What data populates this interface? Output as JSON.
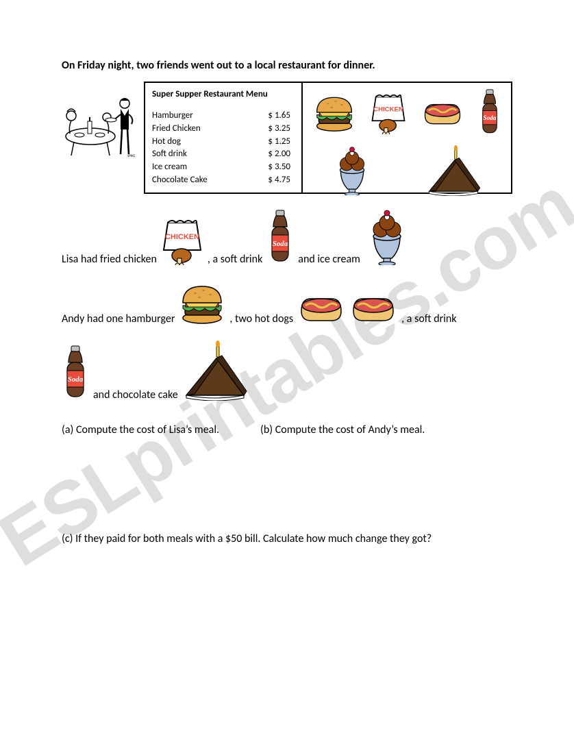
{
  "watermark": "ESLprintables.com",
  "intro": "On Friday night, two friends went out to a local restaurant for dinner.",
  "menu": {
    "title": "Super Supper Restaurant Menu",
    "items": [
      {
        "name": "Hamburger",
        "price": "$ 1.65"
      },
      {
        "name": "Fried Chicken",
        "price": "$ 3.25"
      },
      {
        "name": "Hot dog",
        "price": "$ 1.25"
      },
      {
        "name": "Soft drink",
        "price": "$ 2.00"
      },
      {
        "name": "Ice cream",
        "price": "$ 3.50"
      },
      {
        "name": "Chocolate Cake",
        "price": "$ 4.75"
      }
    ]
  },
  "lisa": {
    "p1": "Lisa had fried chicken",
    "p2": ", a soft drink",
    "p3": "and ice cream"
  },
  "andy": {
    "p1": "Andy had one hamburger",
    "p2": ", two hot dogs",
    "p3": ", a soft drink",
    "p4": "and chocolate cake"
  },
  "questions": {
    "a": "(a) Compute the cost of Lisa’s meal.",
    "b": "(b) Compute the cost of Andy’s meal.",
    "c": "(c) If they paid for both meals with a $50 bill. Calculate how much change they got?"
  },
  "colors": {
    "bun": "#e8a94a",
    "bunShade": "#c8842a",
    "lettuce": "#4caf50",
    "tomato": "#e74c3c",
    "patty": "#5d3a1a",
    "cheese": "#f7d358",
    "hotdogBun": "#f0c674",
    "sausage": "#d9534f",
    "mustard": "#e8c547",
    "bagOutline": "#000000",
    "bagFill": "#ffffff",
    "chickenText": "#e74c3c",
    "drumstick": "#b5651d",
    "sodaBody": "#6b3e26",
    "sodaLabel": "#e74c3c",
    "sodaCap": "#c0c0c0",
    "iceCup": "#b0c4de",
    "iceCream": "#8b4513",
    "cherry": "#d11141",
    "cakeBody": "#5d3a1a",
    "cakeTop": "#3e2613",
    "candle": "#f4d03f",
    "flame": "#f39c12"
  }
}
